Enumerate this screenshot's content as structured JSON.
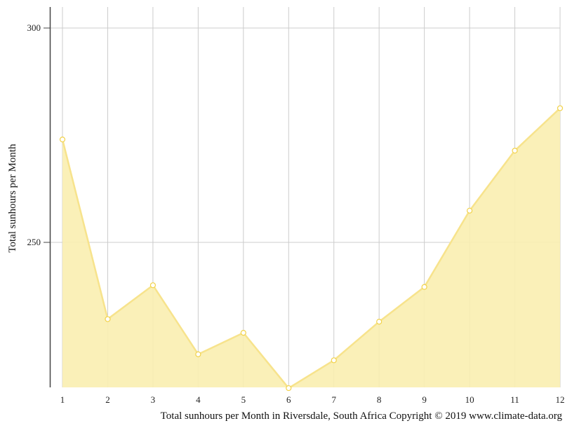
{
  "chart_data": {
    "type": "area",
    "x": [
      "1",
      "2",
      "3",
      "4",
      "5",
      "6",
      "7",
      "8",
      "9",
      "10",
      "11",
      "12"
    ],
    "series": [
      {
        "values": [
          274.0,
          232.1,
          240.0,
          223.9,
          228.9,
          216.0,
          222.5,
          231.5,
          239.6,
          257.4,
          271.4,
          281.3
        ]
      }
    ],
    "ylabel": "Total sunhours per Month",
    "y_ticks": [
      "250",
      "300"
    ],
    "ylim": [
      216,
      305
    ],
    "grid": true,
    "caption": "Total sunhours per Month in Riversdale, South Africa Copyright © 2019 www.climate-data.org",
    "colors": {
      "area_fill": "#faeeb0",
      "line": "#f7e38c",
      "marker_stroke": "#f2d24a",
      "marker_fill": "#ffffff",
      "grid": "#cccccc",
      "axis": "#444444"
    }
  }
}
